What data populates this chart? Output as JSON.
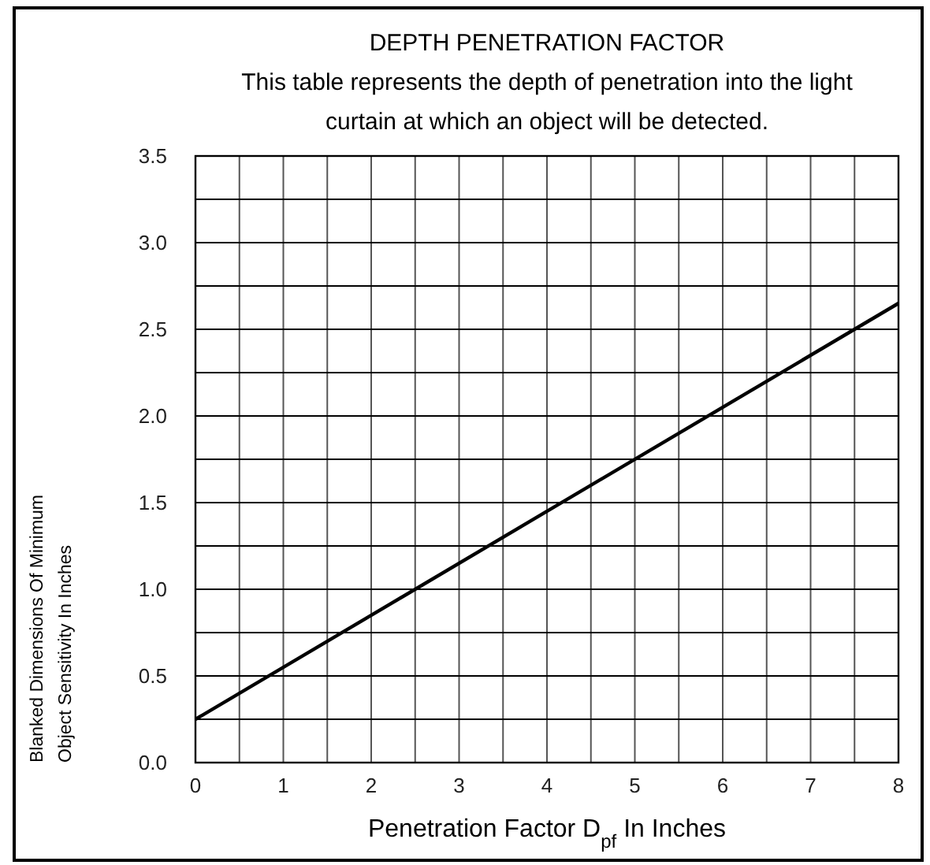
{
  "chart_data": {
    "type": "line",
    "title": "DEPTH PENETRATION FACTOR",
    "subtitle": "This table represents the depth of penetration into the light curtain at which an object will be detected.",
    "xlabel": "Penetration Factor D$_{pf}$ In Inches",
    "ylabel": "Blanked Dimensions Of Minimum Object Sensitivity In Inches",
    "x": [
      0,
      8
    ],
    "series": [
      {
        "color": "#000000",
        "values": [
          0.25,
          2.65
        ]
      }
    ],
    "xlim": [
      0,
      8
    ],
    "ylim": [
      0,
      3.5
    ],
    "xticks": [
      0,
      {
        "value": 0.5,
        "label": null
      },
      1,
      {
        "value": 1.5,
        "label": null
      },
      2,
      {
        "value": 2.5,
        "label": null
      },
      3,
      {
        "value": 3.5,
        "label": null
      },
      4,
      {
        "value": 4.5,
        "label": null
      },
      5,
      {
        "value": 5.5,
        "label": null
      },
      6,
      {
        "value": 6.5,
        "label": null
      },
      7,
      {
        "value": 7.5,
        "label": null
      },
      8
    ],
    "yticks": [
      {
        "value": 0,
        "label": "0.0"
      },
      {
        "value": 0.25,
        "label": null
      },
      {
        "value": 0.5,
        "label": "0.5"
      },
      {
        "value": 0.75,
        "label": null
      },
      {
        "value": 1,
        "label": "1.0"
      },
      {
        "value": 1.25,
        "label": null
      },
      {
        "value": 1.5,
        "label": "1.5"
      },
      {
        "value": 1.75,
        "label": null
      },
      {
        "value": 2,
        "label": "2.0"
      },
      {
        "value": 2.25,
        "label": null
      },
      {
        "value": 2.5,
        "label": "2.5"
      },
      {
        "value": 2.75,
        "label": null
      },
      {
        "value": 3,
        "label": "3.0"
      },
      {
        "value": 3.25,
        "label": null
      },
      {
        "value": 3.5,
        "label": "3.5"
      }
    ],
    "grid": true,
    "marker": "none",
    "line_style": "solid"
  }
}
